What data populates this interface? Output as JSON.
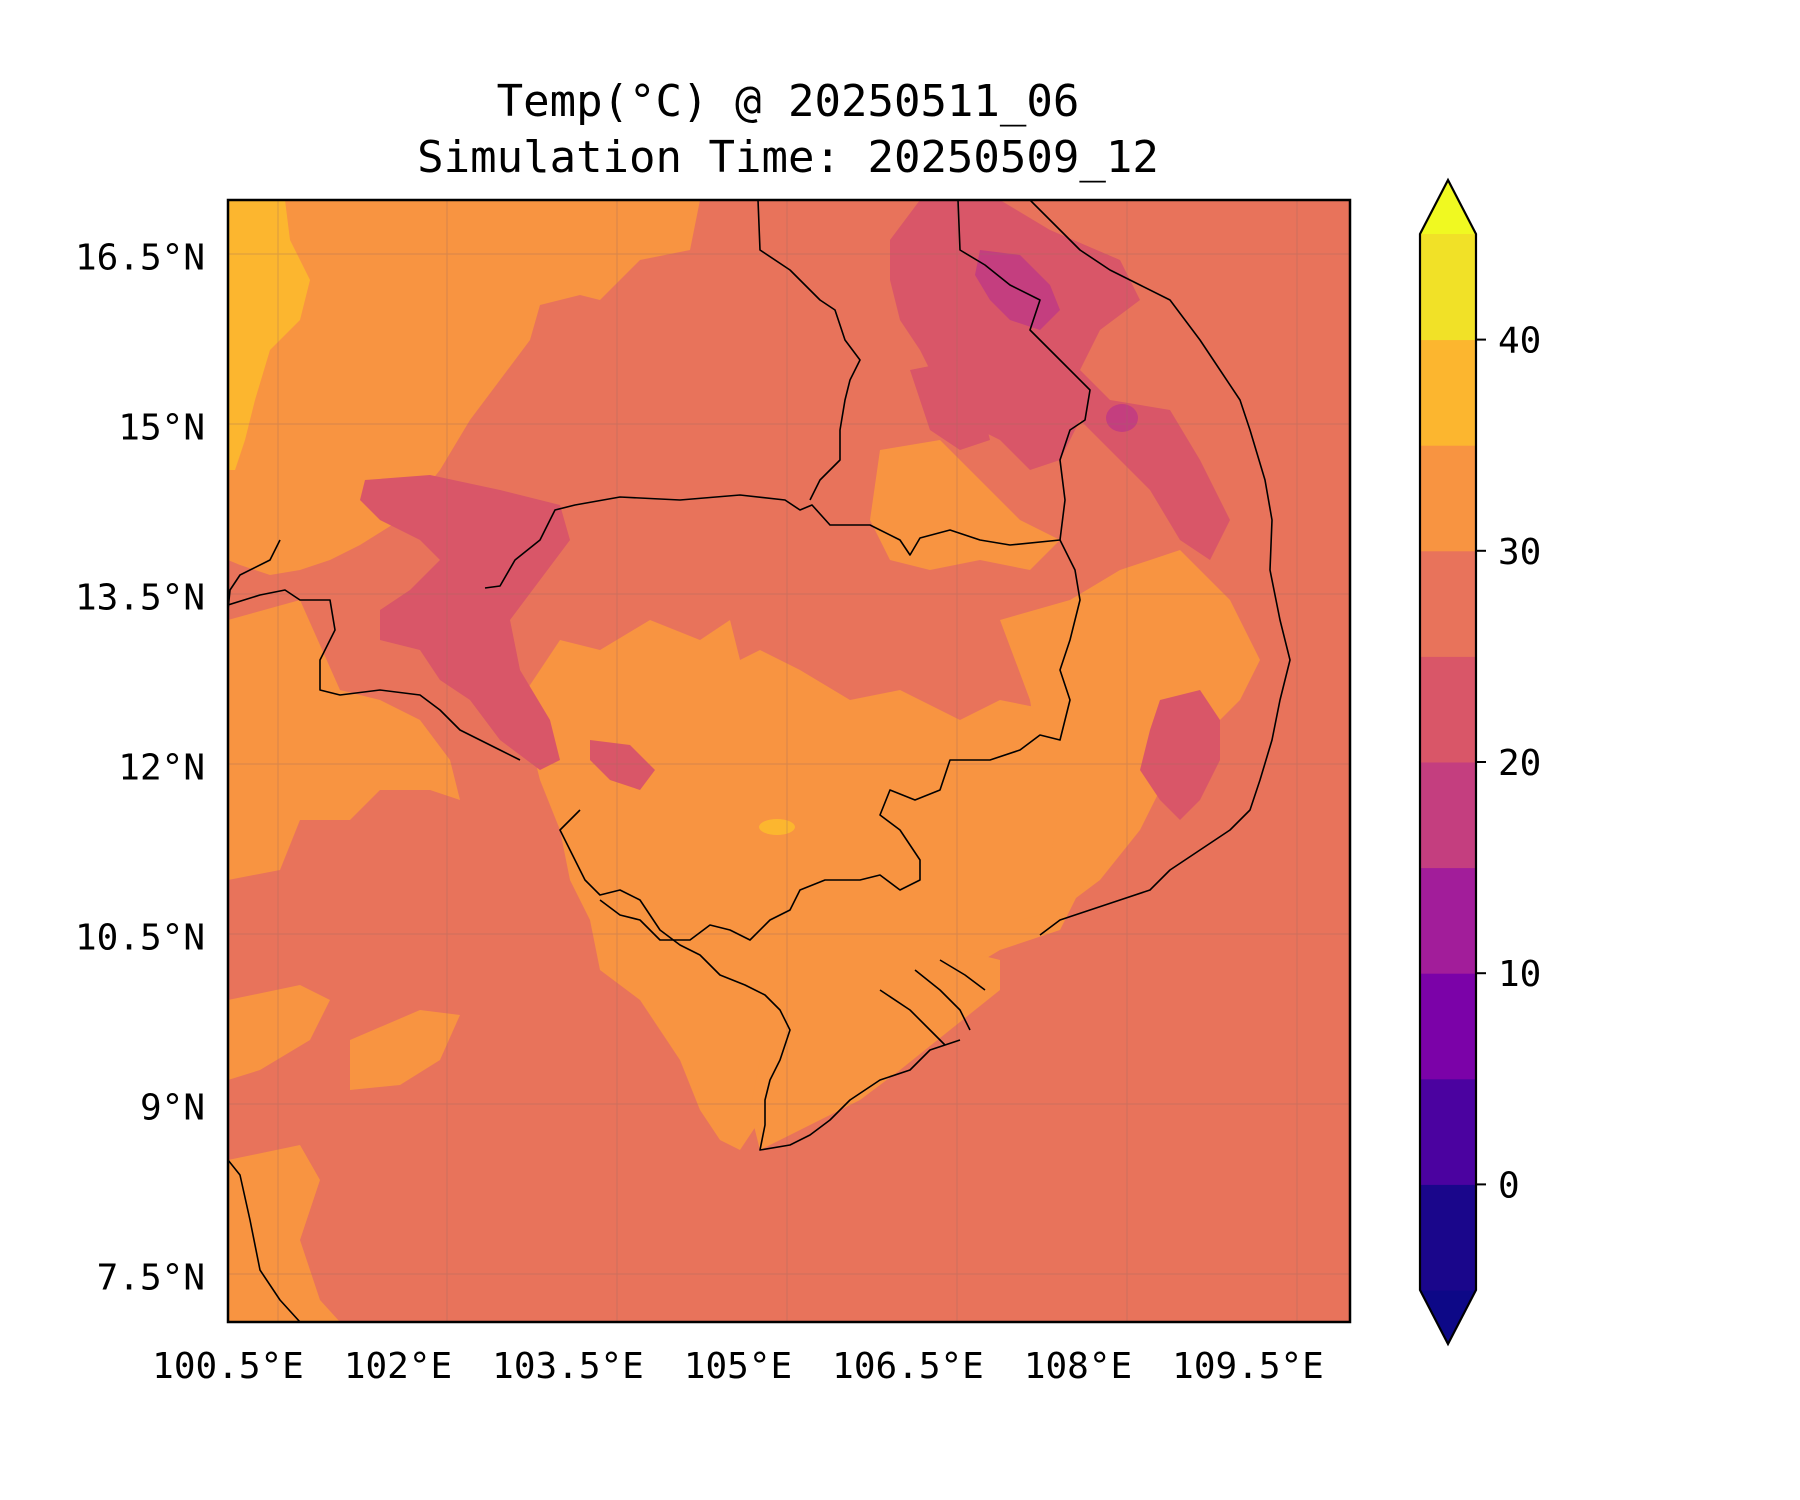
{
  "title": {
    "line1": "Temp(°C) @ 20250511_06",
    "line2": "Simulation Time: 20250509_12"
  },
  "map": {
    "region_shown": "Thailand / Cambodia / Laos / Southern Vietnam",
    "lon_range": [
      100.5,
      110.4
    ],
    "lat_range": [
      7.1,
      17.0
    ],
    "x_ticks": [
      "100.5°E",
      "102°E",
      "103.5°E",
      "105°E",
      "106.5°E",
      "108°E",
      "109.5°E"
    ],
    "x_tick_values": [
      100.5,
      102,
      103.5,
      105,
      106.5,
      108,
      109.5
    ],
    "y_ticks": [
      "16.5°N",
      "15°N",
      "13.5°N",
      "12°N",
      "10.5°N",
      "9°N",
      "7.5°N"
    ],
    "y_tick_values": [
      16.5,
      15,
      13.5,
      12,
      10.5,
      9,
      7.5
    ],
    "background_color": "#e8735b",
    "gridlines": true
  },
  "colorbar": {
    "cmap": "plasma",
    "extend": "both",
    "levels": [
      -5,
      0,
      5,
      10,
      15,
      20,
      25,
      30,
      35,
      40,
      45
    ],
    "colors": [
      "#1a068b",
      "#4b02a0",
      "#7b02a8",
      "#a21d9a",
      "#c43e7f",
      "#d95668",
      "#e8735b",
      "#f89441",
      "#fcb62f",
      "#f1e127"
    ],
    "under_color": "#0d0887",
    "over_color": "#f0f921",
    "tick_values": [
      0,
      10,
      20,
      30,
      40
    ],
    "tick_labels": [
      "0",
      "10",
      "20",
      "30",
      "40"
    ]
  }
}
